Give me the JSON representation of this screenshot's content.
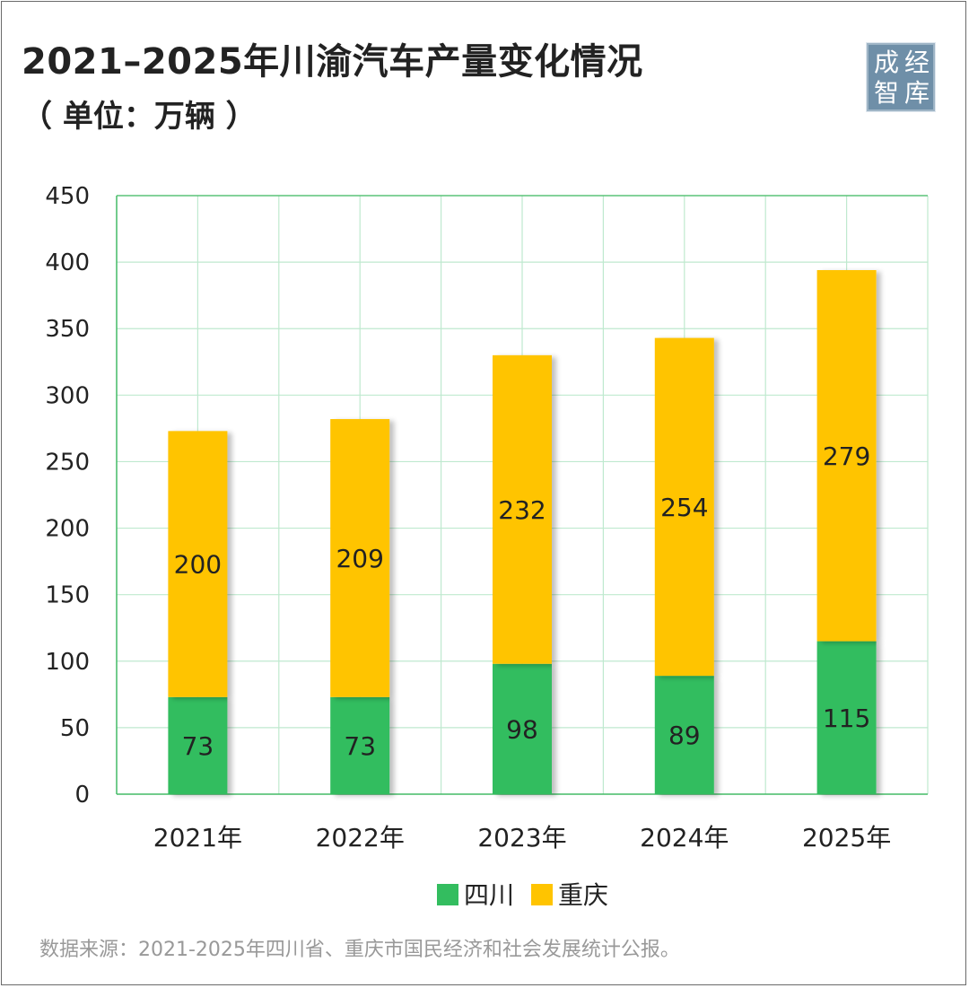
{
  "header": {
    "title": "2021–2025年川渝汽车产量变化情况",
    "subtitle": "（ 单位：万辆 ）"
  },
  "logo": {
    "chars": [
      "成",
      "经",
      "智",
      "库"
    ]
  },
  "colors": {
    "sichuan": "#33bd5f",
    "chongqing": "#ffc400",
    "grid": "#bfe9cf",
    "axis": "#44bb66",
    "logo_bg": "#6f8fa8"
  },
  "chart_data": {
    "type": "bar",
    "stacked": true,
    "categories": [
      "2021年",
      "2022年",
      "2023年",
      "2024年",
      "2025年"
    ],
    "series": [
      {
        "name": "四川",
        "values": [
          73,
          73,
          98,
          89,
          115
        ]
      },
      {
        "name": "重庆",
        "values": [
          200,
          209,
          232,
          254,
          279
        ]
      }
    ],
    "ylim": [
      0,
      450
    ],
    "yticks": [
      0,
      50,
      100,
      150,
      200,
      250,
      300,
      350,
      400,
      450
    ],
    "grid": true,
    "legend_position": "bottom"
  },
  "footer": {
    "source": "数据来源：2021-2025年四川省、重庆市国民经济和社会发展统计公报。"
  }
}
